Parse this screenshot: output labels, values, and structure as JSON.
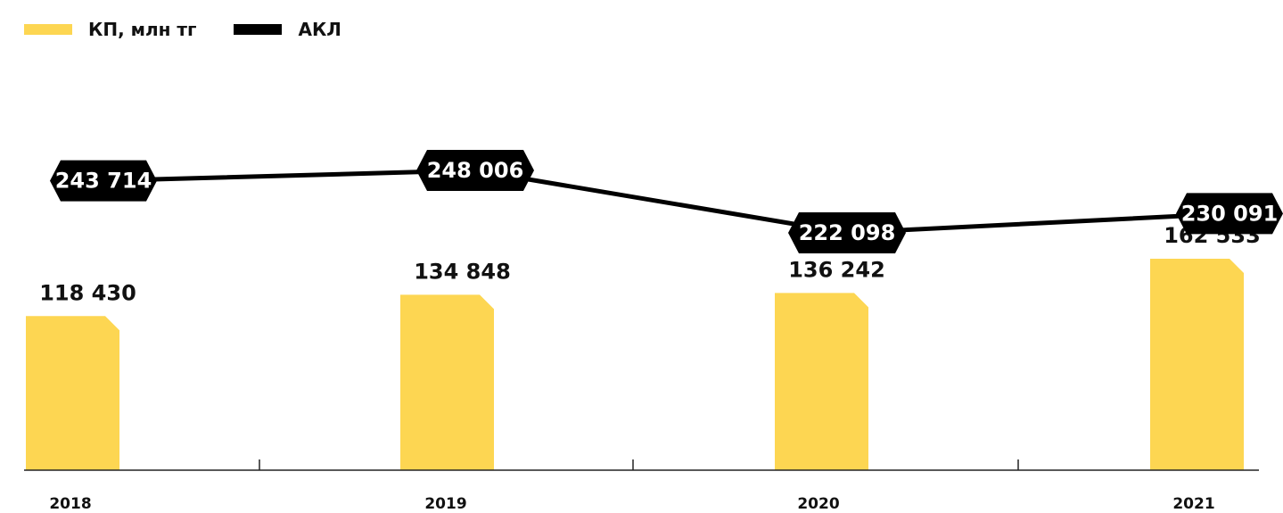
{
  "legend": [
    {
      "label": "КП, млн тг",
      "color": "#FDD652"
    },
    {
      "label": "АКЛ",
      "color": "#000000"
    }
  ],
  "chart_data": {
    "type": "bar",
    "categories": [
      "2018",
      "2019",
      "2020",
      "2021"
    ],
    "series": [
      {
        "name": "КП, млн тг",
        "type": "bar",
        "color": "#FDD652",
        "values": [
          118430,
          134848,
          136242,
          162533
        ],
        "value_labels": [
          "118 430",
          "134 848",
          "136 242",
          "162 533"
        ]
      },
      {
        "name": "АКЛ",
        "type": "line",
        "color": "#000000",
        "values": [
          243714,
          248006,
          222098,
          230091
        ],
        "value_labels": [
          "243 714",
          "248 006",
          "222 098",
          "230 091"
        ]
      }
    ],
    "legend_position": "top-left",
    "grid": false
  }
}
